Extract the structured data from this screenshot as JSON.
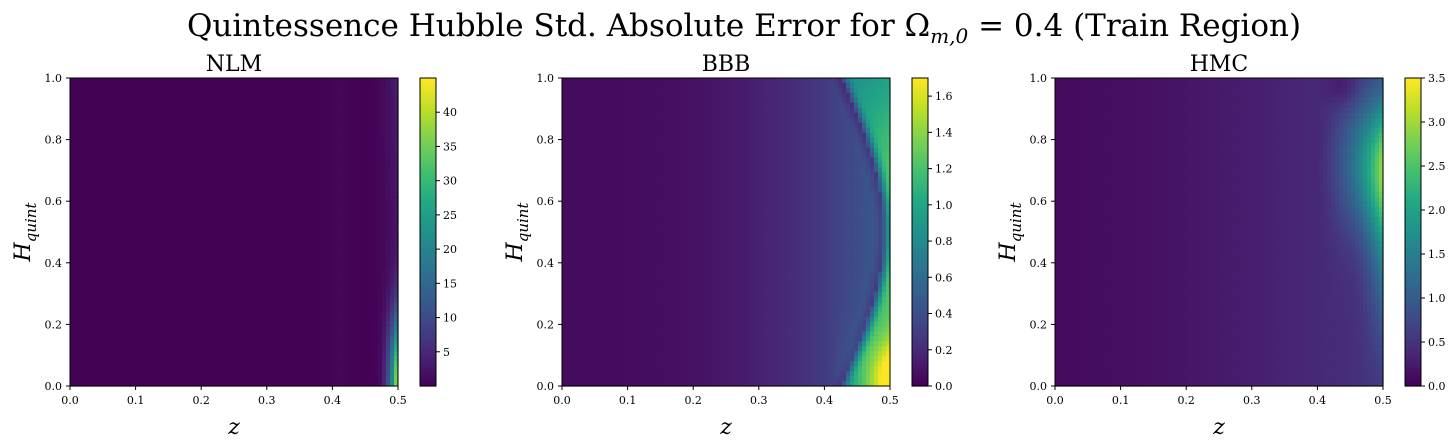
{
  "figure_title": "Quintessence Hubble Std. Absolute Error for Ω",
  "figure_title_sub": "m,0",
  "figure_title_rest": " = 0.4 (Train Region)",
  "chart_data": [
    {
      "type": "heatmap",
      "title": "NLM",
      "xlabel": "z",
      "ylabel_main": "H",
      "ylabel_sub": "quint",
      "x": [
        0.0,
        0.5
      ],
      "y": [
        0.0,
        1.0
      ],
      "xticks": [
        "0.0",
        "0.1",
        "0.2",
        "0.3",
        "0.4",
        "0.5"
      ],
      "yticks": [
        "0.0",
        "0.2",
        "0.4",
        "0.6",
        "0.8",
        "1.0"
      ],
      "colormap": "viridis",
      "colorbar_range": [
        0,
        45
      ],
      "colorbar_ticks": [
        "5",
        "10",
        "15",
        "20",
        "25",
        "30",
        "35",
        "40"
      ],
      "colorbar_tick_values": [
        5,
        10,
        15,
        20,
        25,
        30,
        35,
        40
      ],
      "description_values": {
        "background": 1,
        "max_near_x0.5_y0.0": 45
      }
    },
    {
      "type": "heatmap",
      "title": "BBB",
      "xlabel": "z",
      "ylabel_main": "H",
      "ylabel_sub": "quint",
      "x": [
        0.0,
        0.5
      ],
      "y": [
        0.0,
        1.0
      ],
      "xticks": [
        "0.0",
        "0.1",
        "0.2",
        "0.3",
        "0.4",
        "0.5"
      ],
      "yticks": [
        "0.0",
        "0.2",
        "0.4",
        "0.6",
        "0.8",
        "1.0"
      ],
      "colormap": "viridis",
      "colorbar_range": [
        0,
        1.7
      ],
      "colorbar_ticks": [
        "0.0",
        "0.2",
        "0.4",
        "0.6",
        "0.8",
        "1.0",
        "1.2",
        "1.4",
        "1.6"
      ],
      "colorbar_tick_values": [
        0,
        0.2,
        0.4,
        0.6,
        0.8,
        1.0,
        1.2,
        1.4,
        1.6
      ],
      "description_values": {
        "background": 0.1,
        "max_near_x0.5_y0.0": 1.7
      }
    },
    {
      "type": "heatmap",
      "title": "HMC",
      "xlabel": "z",
      "ylabel_main": "H",
      "ylabel_sub": "quint",
      "x": [
        0.0,
        0.5
      ],
      "y": [
        0.0,
        1.0
      ],
      "xticks": [
        "0.0",
        "0.1",
        "0.2",
        "0.3",
        "0.4",
        "0.5"
      ],
      "yticks": [
        "0.0",
        "0.2",
        "0.4",
        "0.6",
        "0.8",
        "1.0"
      ],
      "colormap": "viridis",
      "colorbar_range": [
        0,
        3.5
      ],
      "colorbar_ticks": [
        "0.0",
        "0.5",
        "1.0",
        "1.5",
        "2.0",
        "2.5",
        "3.0",
        "3.5"
      ],
      "colorbar_tick_values": [
        0,
        0.5,
        1.0,
        1.5,
        2.0,
        2.5,
        3.0,
        3.5
      ],
      "description_values": {
        "background": 0.1,
        "max_near_x0.5_y0.7": 3.5
      }
    }
  ]
}
